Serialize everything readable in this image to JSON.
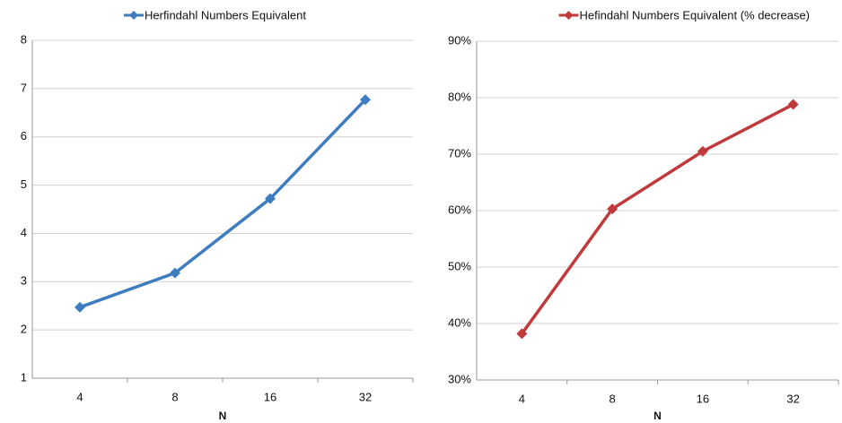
{
  "chart_data": [
    {
      "type": "line",
      "categories": [
        "4",
        "8",
        "16",
        "32"
      ],
      "x_label": "N",
      "series": [
        {
          "name": "Herfindahl Numbers Equivalent",
          "color": "#3e7cc0",
          "values": [
            2.47,
            3.18,
            4.72,
            6.77
          ]
        }
      ],
      "ylim": [
        1,
        8
      ],
      "yticks": [
        1,
        2,
        3,
        4,
        5,
        6,
        7,
        8
      ],
      "grid": true,
      "legend": "top"
    },
    {
      "type": "line",
      "categories": [
        "4",
        "8",
        "16",
        "32"
      ],
      "x_label": "N",
      "series": [
        {
          "name": "Hefindahl Numbers Equivalent (% decrease)",
          "color": "#c0393b",
          "values": [
            38.2,
            60.3,
            70.5,
            78.8
          ]
        }
      ],
      "ylim": [
        30,
        90
      ],
      "yticks": [
        {
          "value": 30,
          "label": "30%"
        },
        {
          "value": 40,
          "label": "40%"
        },
        {
          "value": 50,
          "label": "50%"
        },
        {
          "value": 60,
          "label": "60%"
        },
        {
          "value": 70,
          "label": "70%"
        },
        {
          "value": 80,
          "label": "80%"
        },
        {
          "value": 90,
          "label": "90%"
        }
      ],
      "grid": true,
      "legend": "top"
    }
  ]
}
